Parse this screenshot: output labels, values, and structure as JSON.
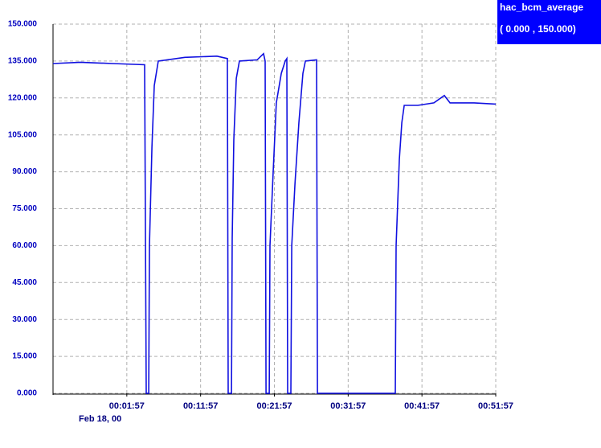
{
  "chart_data": {
    "type": "line",
    "legend_title": "hac_bcm_average",
    "legend_range": "( 0.000  , 150.000)",
    "date_label": "Feb 18, 00",
    "x": [
      "23:51:57",
      "23:55:39",
      "00:00:01",
      "00:04:22",
      "00:04:35",
      "00:04:55",
      "00:05:01",
      "00:05:21",
      "00:05:40",
      "00:06:13",
      "00:09:49",
      "00:14:10",
      "00:15:35",
      "00:15:41",
      "00:16:08",
      "00:16:14",
      "00:16:27",
      "00:16:47",
      "00:17:13",
      "00:19:37",
      "00:20:29",
      "00:20:42",
      "00:20:49",
      "00:21:15",
      "00:21:21",
      "00:21:47",
      "00:22:13",
      "00:22:53",
      "00:23:25",
      "00:23:38",
      "00:23:45",
      "00:24:11",
      "00:24:18",
      "00:24:44",
      "00:25:16",
      "00:25:49",
      "00:26:09",
      "00:27:40",
      "00:27:47",
      "00:38:20",
      "00:38:27",
      "00:38:53",
      "00:39:13",
      "00:39:33",
      "00:41:23",
      "00:43:34",
      "00:44:59",
      "00:45:45",
      "00:49:01",
      "00:51:57"
    ],
    "series": [
      {
        "name": "hac_bcm_average",
        "color": "#1010e0",
        "values": [
          134,
          134.5,
          134,
          133.5,
          0,
          0,
          60,
          100,
          125,
          135,
          136.5,
          137,
          136,
          0,
          0,
          63,
          103,
          128,
          135,
          135.5,
          138,
          135,
          0,
          0,
          60,
          90,
          118,
          130,
          135,
          136,
          0,
          0,
          60,
          85,
          110,
          130,
          135,
          135.5,
          0,
          0,
          60,
          95,
          110,
          117,
          117,
          118,
          121,
          118,
          118,
          117.5
        ]
      }
    ],
    "xlim": [
      "23:51:57",
      "00:51:57"
    ],
    "xticks": [
      "00:01:57",
      "00:11:57",
      "00:21:57",
      "00:31:57",
      "00:41:57",
      "00:51:57"
    ],
    "ylim": [
      0,
      150
    ],
    "yticks": [
      {
        "value": 0,
        "label": "0.000"
      },
      {
        "value": 15,
        "label": "15.000"
      },
      {
        "value": 30,
        "label": "30.000"
      },
      {
        "value": 45,
        "label": "45.000"
      },
      {
        "value": 60,
        "label": "60.000"
      },
      {
        "value": 75,
        "label": "75.000"
      },
      {
        "value": 90,
        "label": "90.000"
      },
      {
        "value": 105,
        "label": "105.000"
      },
      {
        "value": 120,
        "label": "120.000"
      },
      {
        "value": 135,
        "label": "135.000"
      },
      {
        "value": 150,
        "label": "150.000"
      }
    ],
    "grid": true
  }
}
